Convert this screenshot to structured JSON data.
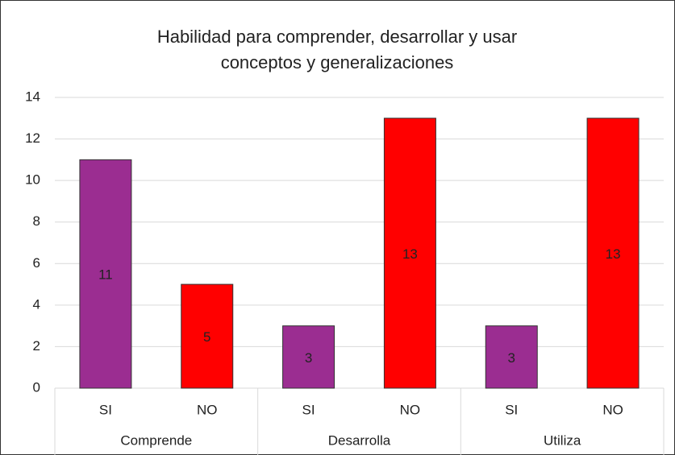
{
  "chart_data": {
    "type": "bar",
    "title": "Habilidad para comprender, desarrollar y usar conceptos y generalizaciones",
    "categories": [
      "SI",
      "NO",
      "SI",
      "NO",
      "SI",
      "NO"
    ],
    "groups": [
      "Comprende",
      "Desarrolla",
      "Utiliza"
    ],
    "values": [
      11,
      5,
      3,
      13,
      3,
      13
    ],
    "colors": [
      "#9b2d91",
      "#ff0000",
      "#9b2d91",
      "#ff0000",
      "#9b2d91",
      "#ff0000"
    ],
    "ylim": [
      0,
      14
    ],
    "yticks": [
      0,
      2,
      4,
      6,
      8,
      10,
      12,
      14
    ],
    "grid": true
  }
}
